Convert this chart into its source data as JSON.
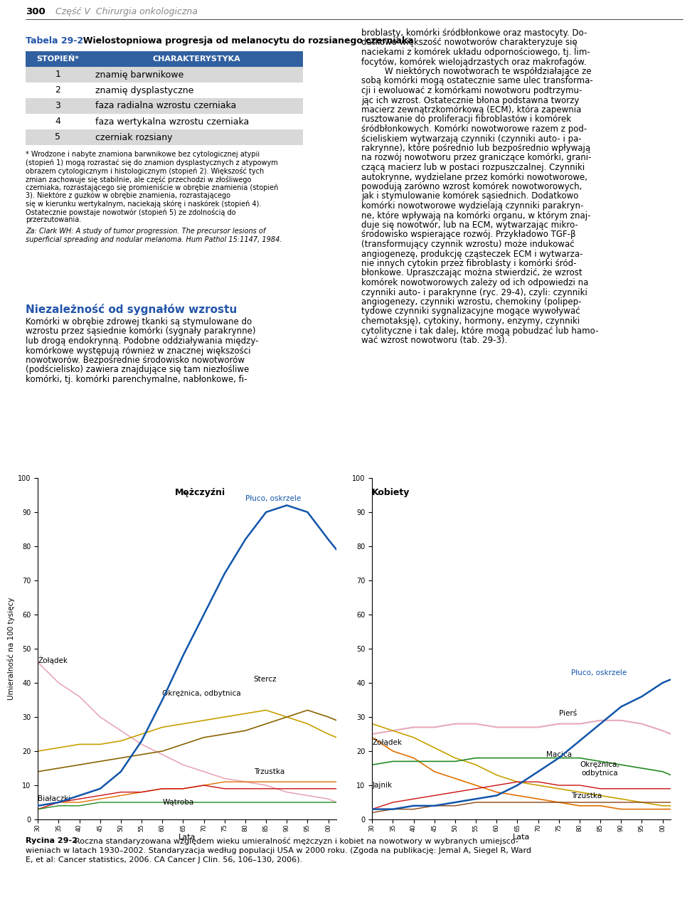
{
  "page_header_num": "300",
  "page_header_text": "Część V  Chirurgia onkologiczna",
  "table_title_bold": "Tabela 29-2",
  "table_title_rest": "  Wielostopniowa progresja od melanocytu do rozsianego czerniaka",
  "table_header": [
    "STOPIEŃ*",
    "CHARAKTERYSTYKA"
  ],
  "table_rows": [
    [
      "1",
      "znamię barwnikowe"
    ],
    [
      "2",
      "znamię dysplastyczne"
    ],
    [
      "3",
      "faza radialna wzrostu czerniaka"
    ],
    [
      "4",
      "faza wertykalna wzrostu czerniaka"
    ],
    [
      "5",
      "czerniak rozsiany"
    ]
  ],
  "table_header_bg": "#3060A0",
  "table_row_bg_odd": "#D8D8D8",
  "table_row_bg_even": "#FFFFFF",
  "table_footnote_lines": [
    "* Wrodzone i nabyte znamiona barwnikowe bez cytologicznej atypii",
    "(stopień 1) mogą rozrastać się do znamion dysplastycznych z atypowym",
    "obrazem cytologicznym i histologicznym (stopień 2). Większość tych",
    "zmian zachowuje się stabilnie, ale część przechodzi w złośliwego",
    "czerniaka, rozrastającego się promieniście w obrębie znamienia (stopień",
    "3). Niektóre z guzków w obrębie znamienia, rozrastającego",
    "się w kierunku wertykalnym, naciekają skórę i naskórek (stopień 4).",
    "Ostatecznie powstaje nowotwór (stopień 5) ze zdolnością do",
    "przerzutowania."
  ],
  "table_footnote2_lines": [
    "Za: Clark WH: A study of tumor progression. The precursor lesions of",
    "superficial spreading and nodular melanoma. Hum Pathol 15:1147, 1984."
  ],
  "left_col_body_lines": [
    "Niezależność od sygnałów wzrostu",
    "",
    "Komórki w obrębie zdrowej tkanki są stymulowane do",
    "wzrostu przez sąsiednie komórki (sygnały parakrynne)",
    "lub drogą endokrynną. Podobne oddziaływania między-",
    "komórkowe występują również w znacznej większości",
    "nowotworów. Bezpośrednie środowisko nowotworów",
    "(podścielisko) zawiera znajdujące się tam niezłośliwe",
    "komórki, tj. komórki parenchymalne, nabłonkowe, fi-"
  ],
  "right_col_lines": [
    "broblasty, komórki śródbłonkowe oraz mastocyty. Do-",
    "datkowo większość nowotworów charakteryzuje się",
    "naciekami z komórek układu odpornościowego, tj. lim-",
    "focytów, komórek wielojądrzastych oraz makrofagów.",
    "    W niektórych nowotworach te współdziałające ze",
    "sobą komórki mogą ostatecznie same ulec transforma-",
    "cji i ewoluować z komórkami nowotworu podtrzymu-",
    "jąc ich wzrost. Ostatecznie błona podstawna tworzy",
    "macierz zewnątrzkomórkową (ECM), która zapewnia",
    "rusztowanie do proliferacji fibroblastów i komórek",
    "śródbłonkowych. Komórki nowotworowe razem z pod-",
    "ścieliskiem wytwarzają czynniki (czynniki auto- i pa-",
    "rakrynne), które pośrednio lub bezpośrednio wpływają",
    "na rozwój nowotworu przez graniczące komórki, grani-",
    "czącą macierz lub w postaci rozpuszczalnej. Czynniki",
    "autokrynne, wydzielane przez komórki nowotworowe,",
    "powodują zarówno wzrost komórek nowotworowych,",
    "jak i stymulowanie komórek sąsiednich. Dodatkowo",
    "komórki nowotworowe wydzielają czynniki parakryn-",
    "ne, które wpływają na komórki organu, w którym znaj-",
    "duje się nowotwór, lub na ECM, wytwarzając mikro-",
    "środowisko wspierające rozwój. Przykładowo TGF-β",
    "(transformujący czynnik wzrostu) może indukować",
    "angiogenezę, produkcję cząsteczek ECM i wytwarzа-",
    "nie innych cytokin przez fibroblasty i komórki śród-",
    "błonkowe. Upraszczając można stwierdzić, że wzrost",
    "komórek nowotworowych zależy od ich odpowiedzi na",
    "czynniki auto- i parakrynne (ryc. 29-4), czyli: czynniki",
    "angiogenezy, czynniki wzrostu, chemokiny (polipep-",
    "tydowe czynniki sygnalizacyjne mogące wywoływać",
    "chemotaksję), cytokiny, hormony, enzymy, czynniki",
    "cytolityczne i tak dalej, które mogą pobudzać lub hamo-",
    "wać wzrost nowotworu (tab. 29-3)."
  ],
  "chart_ylabel": "Umieralność na 100 tysięcy",
  "chart_xlabel": "Lata",
  "chart_yticks": [
    0,
    10,
    20,
    30,
    40,
    50,
    60,
    70,
    80,
    90,
    100
  ],
  "men_title": "Mężczyźni",
  "women_title": "Kobiety",
  "men_lung_label": "Płuco, oskrzele",
  "men_stomach_label": "Żołądek",
  "men_colon_label": "Okrężnica, odbytnica",
  "men_prostate_label": "Stercz",
  "men_pancreas_label": "Trzustka",
  "men_leukemia_label": "Białaczki",
  "men_liver_label": "Wątroba",
  "women_lung_label": "Płuco, oskrzele",
  "women_breast_label": "Pierś",
  "women_stomach_label": "Żołądek",
  "women_uterus_label": "Macica",
  "women_colon_label": "Okrężnica,\nodbytnica",
  "women_ovary_label": "Jajnik",
  "women_pancreas_label": "Trzustka",
  "caption_bold": "Rycina 29-2",
  "caption_lines": [
    "Rycina 29-2  Roczna standaryzowana względem wieku umieralność mężczyzn i kobiet na nowotwory w wybranych umiejsco-",
    "wieniach w latach 1930–2002. Standaryzacja według populacji USA w 2000 roku. (Zgoda na publikację: Jemal A, Siegel R, Ward",
    "E, et al: Cancer statistics, 2006. CA Cancer J Clin. 56, 106–130, 2006)."
  ],
  "men_lung_color": "#1155AA",
  "men_stomach_color": "#E8A8B8",
  "men_colon_color": "#C8A000",
  "men_prostate_color": "#8B6400",
  "men_pancreas_color": "#E07000",
  "men_leukemia_color": "#CC1111",
  "men_liver_color": "#228B22",
  "women_lung_color": "#1155AA",
  "women_breast_color": "#E8A8B8",
  "women_stomach_color": "#E07000",
  "women_uterus_color": "#C8A000",
  "women_colon_color": "#228B22",
  "women_ovary_color": "#CC1111",
  "women_pancreas_color": "#8B4513",
  "years": [
    1930,
    1935,
    1940,
    1945,
    1950,
    1955,
    1960,
    1965,
    1970,
    1975,
    1980,
    1985,
    1990,
    1995,
    2000,
    2002
  ],
  "men_lung": [
    4,
    5,
    7,
    9,
    14,
    23,
    35,
    48,
    60,
    72,
    82,
    90,
    92,
    90,
    82,
    79
  ],
  "men_stomach": [
    46,
    40,
    36,
    30,
    26,
    22,
    19,
    16,
    14,
    12,
    11,
    10,
    8,
    7,
    6,
    5
  ],
  "men_colon": [
    20,
    21,
    22,
    22,
    23,
    25,
    27,
    28,
    29,
    30,
    31,
    32,
    30,
    28,
    25,
    24
  ],
  "men_prostate": [
    14,
    15,
    16,
    17,
    18,
    19,
    20,
    22,
    24,
    25,
    26,
    28,
    30,
    32,
    30,
    29
  ],
  "men_pancreas": [
    4,
    5,
    5,
    6,
    7,
    8,
    9,
    9,
    10,
    11,
    11,
    11,
    11,
    11,
    11,
    11
  ],
  "men_leukemia": [
    3,
    5,
    6,
    7,
    8,
    8,
    9,
    9,
    10,
    9,
    9,
    9,
    9,
    9,
    9,
    9
  ],
  "men_liver": [
    3,
    4,
    4,
    5,
    5,
    5,
    5,
    5,
    5,
    5,
    5,
    5,
    5,
    5,
    5,
    5
  ],
  "women_lung": [
    3,
    3,
    4,
    4,
    5,
    6,
    7,
    10,
    14,
    18,
    23,
    28,
    33,
    36,
    40,
    41
  ],
  "women_breast": [
    25,
    26,
    27,
    27,
    28,
    28,
    27,
    27,
    27,
    28,
    28,
    29,
    29,
    28,
    26,
    25
  ],
  "women_stomach": [
    24,
    20,
    18,
    14,
    12,
    10,
    8,
    7,
    6,
    5,
    4,
    4,
    3,
    3,
    3,
    3
  ],
  "women_uterus": [
    28,
    26,
    24,
    21,
    18,
    16,
    13,
    11,
    10,
    9,
    8,
    7,
    6,
    5,
    4,
    4
  ],
  "women_colon": [
    16,
    17,
    17,
    17,
    17,
    18,
    18,
    18,
    18,
    18,
    18,
    17,
    16,
    15,
    14,
    13
  ],
  "women_ovary": [
    3,
    5,
    6,
    7,
    8,
    9,
    10,
    11,
    11,
    10,
    10,
    9,
    9,
    9,
    9,
    9
  ],
  "women_pancreas": [
    2,
    3,
    3,
    4,
    4,
    5,
    5,
    5,
    5,
    5,
    5,
    5,
    5,
    5,
    5,
    5
  ]
}
